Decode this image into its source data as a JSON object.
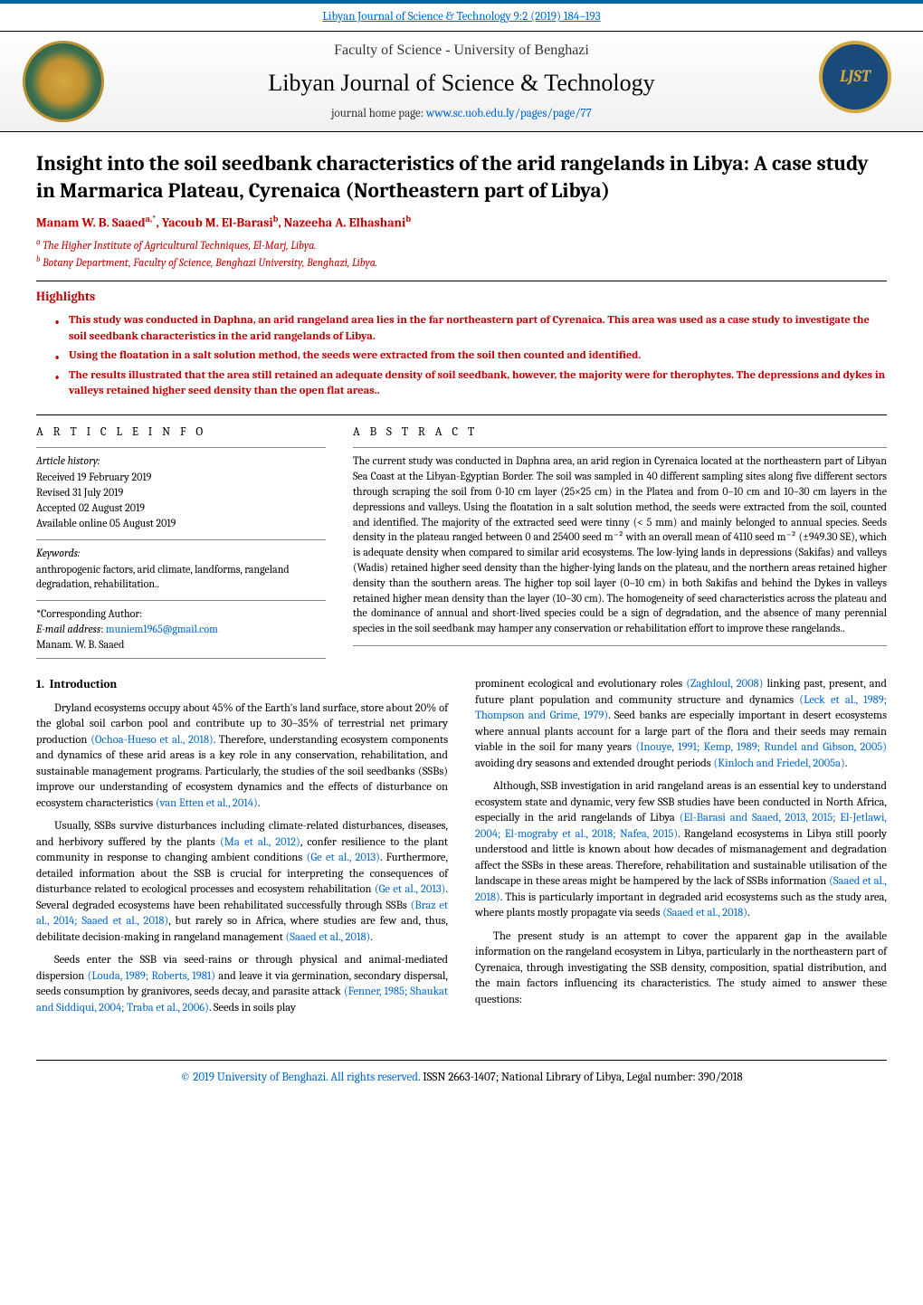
{
  "top_link": {
    "text": "Libyan Journal of Science & Technology 9:2 (2019) 184–193",
    "color": "#0066cc"
  },
  "masthead": {
    "faculty": "Faculty of Science - University of Benghazi",
    "journal_title": "Libyan Journal of Science & Technology",
    "homepage_label": "journal home page: ",
    "homepage_url": "www.sc.uob.edu.ly/pages/page/77",
    "seal_alt": "University of Benghazi seal",
    "logo_text": "LJST"
  },
  "article": {
    "title": "Insight into the soil seedbank characteristics of the arid rangelands in Libya: A case study in Marmarica Plateau, Cyrenaica (Northeastern part of Libya)",
    "authors_html": "Manam W. B. Saaed",
    "author_a_sup": "a,",
    "author_star": "*",
    "author_sep1": ", ",
    "author2": "Yacoub M. El-Barasi",
    "author_b_sup": "b",
    "author_sep2": ", ",
    "author3": "Nazeeha A. Elhashani",
    "author_b_sup2": "b",
    "affiliations": [
      {
        "sup": "a",
        "text": " The Higher Institute of Agricultural Techniques, El-Marj, Libya."
      },
      {
        "sup": "b",
        "text": " Botany Department, Faculty of Science, Benghazi University, Benghazi, Libya."
      }
    ]
  },
  "highlights": {
    "heading": "Highlights",
    "items": [
      "This study was conducted in Daphna, an arid rangeland area lies in the far northeastern part of Cyrenaica. This area was used as a case study to investigate the soil seedbank characteristics in the arid rangelands of Libya.",
      "Using the floatation in a salt solution method, the seeds were extracted from the soil then counted and identified.",
      "The results illustrated that the area still retained an adequate density of soil seedbank, however, the majority were for therophytes. The depressions and dykes in valleys retained higher seed density than the open flat areas.."
    ]
  },
  "article_info": {
    "heading": "A R T I C L E   I N F O",
    "history_label": "Article history:",
    "history": [
      "Received 19 February 2019",
      "Revised 31 July 2019",
      "Accepted 02 August 2019",
      "Available online 05 August 2019"
    ],
    "keywords_label": "Keywords:",
    "keywords_text": "anthropogenic factors, arid climate, landforms, rangeland degradation, rehabilitation..",
    "corresponding_label": "*Corresponding Author:",
    "email_label": "E-mail address",
    "email": "muniem1965@gmail.com",
    "corr_name": "Manam. W. B. Saaed"
  },
  "abstract": {
    "heading": "A B S T R A C T",
    "text": "The current study was conducted in Daphna area, an arid region in Cyrenaica located at the northeastern part of Libyan Sea Coast at the Libyan-Egyptian Border. The soil was sampled in 40 different sampling sites along five different sectors through scraping the soil from 0-10 cm layer (25×25 cm) in the Platea and from 0–10 cm and 10–30 cm layers in the depressions and valleys. Using the floatation in a salt solution method, the seeds were extracted from the soil, counted and identified. The majority of the extracted seed were tinny (< 5 mm) and mainly belonged to annual species. Seeds density in the plateau ranged between 0 and 25400 seed m⁻² with an overall mean of 4110 seed m⁻² (±949.30 SE), which is adequate density when compared to similar arid ecosystems. The low-lying lands in depressions (Sakifas) and valleys (Wadis) retained higher seed density than the higher-lying lands on the plateau, and the northern areas retained higher density than the southern areas. The higher top soil layer (0–10 cm) in both Sakifas and behind the Dykes in valleys retained higher mean density than the layer (10–30 cm). The homogeneity of seed characteristics across the plateau and the dominance of annual and short-lived species could be a sign of degradation, and the absence of many perennial species in the soil seedbank may hamper any conservation or rehabilitation effort to improve these rangelands.."
  },
  "body": {
    "section_number": "1.",
    "section_title": "Introduction",
    "left_paras": [
      {
        "text": "Dryland ecosystems occupy about 45% of the Earth's land surface, store about 20% of the global soil carbon pool and contribute up to 30–35% of terrestrial net primary production ",
        "cite": "(Ochoa-Hueso et al., 2018)",
        "tail": ". Therefore, understanding ecosystem components and dynamics of these arid areas is a key role in any conservation, rehabilitation, and sustainable management programs. Particularly, the studies of the soil seedbanks (SSBs) improve our understanding of ecosystem dynamics and the effects of disturbance on ecosystem characteristics ",
        "cite2": "(van Etten et al., 2014)",
        "tail2": "."
      },
      {
        "text": "Usually, SSBs survive disturbances including climate-related disturbances, diseases, and herbivory suffered by the plants ",
        "cite": "(Ma et al., 2012)",
        "tail": ", confer resilience to the plant community in response to changing ambient conditions ",
        "cite2": "(Ge et al., 2013)",
        "tail2": ". Furthermore, detailed information about the SSB is crucial for interpreting the consequences of disturbance related to ecological processes and ecosystem rehabilitation ",
        "cite3": "(Ge et al., 2013)",
        "tail3": ". Several degraded ecosystems have been rehabilitated successfully through SSBs ",
        "cite4": "(Braz et al., 2014; Saaed et al., 2018)",
        "tail4": ", but rarely so in Africa, where studies are few and, thus, debilitate decision-making in rangeland management ",
        "cite5": "(Saaed et al., 2018)",
        "tail5": "."
      },
      {
        "text": "Seeds enter the SSB via seed-rains or through physical and animal-mediated dispersion ",
        "cite": "(Louda, 1989; Roberts, 1981)",
        "tail": " and leave it via germination, secondary dispersal, seeds consumption by granivores, seeds decay, and parasite attack ",
        "cite2": "(Fenner, 1985; Shaukat and Siddiqui, 2004; Traba et al., 2006)",
        "tail2": ". Seeds in soils play"
      }
    ],
    "right_paras": [
      {
        "pre": "prominent ecological and evolutionary roles ",
        "cite": "(Zaghloul, 2008)",
        "tail": " linking past, present, and future plant population and community structure and dynamics ",
        "cite2": "(Leck et al., 1989; Thompson and Grime, 1979)",
        "tail2": ". Seed banks are especially important in desert ecosystems where annual plants account for a large part of the flora and their seeds may remain viable in the soil for many years ",
        "cite3": "(Inouye, 1991; Kemp, 1989; Rundel and Gibson, 2005)",
        "tail3": " avoiding dry seasons and extended drought periods ",
        "cite4": "(Kinloch and Friedel, 2005a)",
        "tail4": "."
      },
      {
        "text": "Although, SSB investigation in arid rangeland areas is an essential key to understand ecosystem state and dynamic, very few SSB studies have been conducted in North Africa, especially in the arid rangelands of Libya ",
        "cite": "(El-Barasi and Saaed, 2013, 2015; El-Jetlawi, 2004; El-mograby et al., 2018; Nafea, 2015)",
        "tail": ". Rangeland ecosystems in Libya still poorly understood and little is known about how decades of mismanagement and degradation affect the SSBs in these areas. Therefore, rehabilitation and sustainable utilisation of the landscape in these areas might be hampered by the lack of SSBs information ",
        "cite2": "(Saaed et al., 2018)",
        "tail2": ". This is particularly important in degraded arid ecosystems such as the study area, where plants mostly propagate via seeds ",
        "cite3": "(Saaed et al., 2018)",
        "tail3": "."
      },
      {
        "text": "The present study is an attempt to cover the apparent gap in the available information on the rangeland ecosystem in Libya, particularly in the northeastern part of Cyrenaica, through investigating the SSB density, composition, spatial distribution, and the main factors influencing its characteristics. The study aimed to answer these questions:"
      }
    ]
  },
  "footer": {
    "copyright": "© 2019 University of Benghazi. All rights reserved.",
    "issn": " ISSN 2663-1407; National Library of Libya, Legal number: 390/2018"
  },
  "colors": {
    "accent_red": "#c00000",
    "link_blue": "#0066cc",
    "header_blue": "#0066a4"
  }
}
